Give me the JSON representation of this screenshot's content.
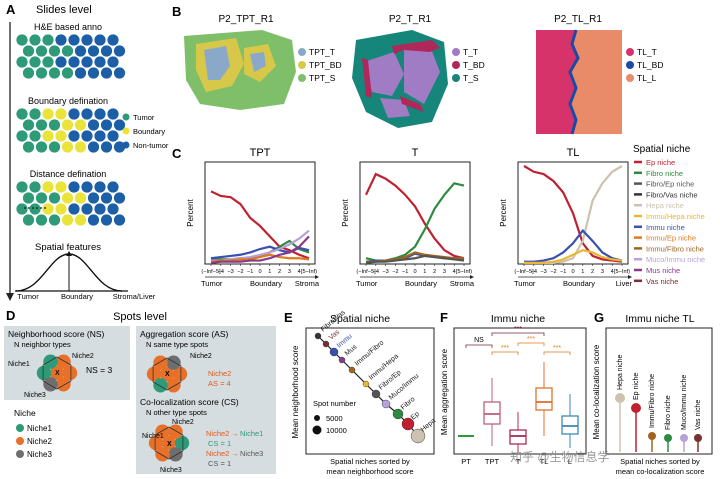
{
  "panel_letters": {
    "A": "A",
    "B": "B",
    "C": "C",
    "D": "D",
    "E": "E",
    "F": "F",
    "G": "G"
  },
  "A": {
    "title": "Slides level",
    "he_label": "H&E based anno",
    "boundary_label": "Boundary defination",
    "distance_label": "Distance defination",
    "features_label": "Spatial features",
    "legend": [
      {
        "label": "Tumor",
        "color": "#2e9a78"
      },
      {
        "label": "Boundary",
        "color": "#e9e33a"
      },
      {
        "label": "Non-tumor",
        "color": "#1d5fa6"
      }
    ],
    "axis_labels": [
      "Tumor",
      "Boundary",
      "Stroma/Liver"
    ]
  },
  "B": {
    "maps": [
      {
        "title": "P2_TPT_R1",
        "legend": [
          {
            "label": "TPT_T",
            "color": "#8aa9c8"
          },
          {
            "label": "TPT_BD",
            "color": "#d8c84a"
          },
          {
            "label": "TPT_S",
            "color": "#7fbf6a"
          }
        ]
      },
      {
        "title": "P2_T_R1",
        "legend": [
          {
            "label": "T_T",
            "color": "#a07cc5"
          },
          {
            "label": "T_BD",
            "color": "#b0285a"
          },
          {
            "label": "T_S",
            "color": "#16857a"
          }
        ]
      },
      {
        "title": "P2_TL_R1",
        "legend": [
          {
            "label": "TL_T",
            "color": "#d7336b"
          },
          {
            "label": "TL_BD",
            "color": "#1b4aa6"
          },
          {
            "label": "TL_L",
            "color": "#e98a68"
          }
        ]
      }
    ]
  },
  "C": {
    "legend_title": "Spatial niche",
    "ylabel": "Percent",
    "tick_labels": [
      "(−Inf−5]",
      "−4",
      "−3",
      "−2",
      "−1",
      "0",
      "1",
      "2",
      "3",
      "4",
      "[5−Inf)"
    ],
    "chart_data": {
      "type": "line",
      "x": [
        "(−Inf−5]",
        "−4",
        "−3",
        "−2",
        "−1",
        "0",
        "1",
        "2",
        "3",
        "4",
        "[5−Inf)"
      ],
      "series_colors": {
        "Ep niche": "#c0202f",
        "Fibro niche": "#2d8a3e",
        "Fibro/Ep niche": "#555555",
        "Fibro/Vas niche": "#333333",
        "Hepa niche": "#cdc2b0",
        "Immu/Hepa niche": "#e8b830",
        "Immu niche": "#3a4fb0",
        "Immu/Ep niche": "#e07a1e",
        "Immu/Fibro niche": "#a0651e",
        "Muco/Immu niche": "#b8a0d8",
        "Mus niche": "#8a3a8a",
        "Vas niche": "#7a3030"
      },
      "charts": [
        {
          "title": "TPT",
          "bottom_labels": [
            "Tumor",
            "Boundary",
            "Stroma"
          ],
          "series": [
            {
              "name": "Ep niche",
              "values": [
                0.63,
                0.59,
                0.58,
                0.52,
                0.4,
                0.33,
                0.24,
                0.15,
                0.12,
                0.08,
                0.05
              ]
            },
            {
              "name": "Fibro niche",
              "values": [
                0.04,
                0.04,
                0.04,
                0.05,
                0.05,
                0.07,
                0.1,
                0.15,
                0.2,
                0.13,
                0.1
              ]
            },
            {
              "name": "Immu niche",
              "values": [
                0.05,
                0.06,
                0.07,
                0.08,
                0.1,
                0.13,
                0.15,
                0.12,
                0.1,
                0.14,
                0.12
              ]
            },
            {
              "name": "Muco/Immu niche",
              "values": [
                0.03,
                0.03,
                0.04,
                0.05,
                0.06,
                0.08,
                0.1,
                0.13,
                0.17,
                0.22,
                0.29
              ]
            },
            {
              "name": "Immu/Ep niche",
              "values": [
                0.02,
                0.03,
                0.03,
                0.04,
                0.04,
                0.06,
                0.08,
                0.06,
                0.05,
                0.05,
                0.04
              ]
            },
            {
              "name": "Mus niche",
              "values": [
                0.01,
                0.02,
                0.02,
                0.02,
                0.03,
                0.03,
                0.05,
                0.08,
                0.1,
                0.15,
                0.24
              ]
            }
          ]
        },
        {
          "title": "T",
          "bottom_labels": [
            "Tumor",
            "Boundary",
            "Stroma"
          ],
          "series": [
            {
              "name": "Ep niche",
              "values": [
                0.6,
                0.78,
                0.74,
                0.68,
                0.6,
                0.5,
                0.35,
                0.22,
                0.12,
                0.07,
                0.05
              ]
            },
            {
              "name": "Fibro niche",
              "values": [
                0.05,
                0.03,
                0.03,
                0.05,
                0.08,
                0.15,
                0.3,
                0.48,
                0.6,
                0.7,
                0.68
              ]
            },
            {
              "name": "Immu niche",
              "values": [
                0.02,
                0.03,
                0.03,
                0.04,
                0.05,
                0.09,
                0.07,
                0.06,
                0.05,
                0.05,
                0.04
              ]
            },
            {
              "name": "Immu/Fibro niche",
              "values": [
                0.02,
                0.02,
                0.03,
                0.04,
                0.06,
                0.1,
                0.08,
                0.07,
                0.06,
                0.05,
                0.05
              ]
            },
            {
              "name": "Fibro/Ep niche",
              "values": [
                0.01,
                0.02,
                0.02,
                0.03,
                0.04,
                0.05,
                0.07,
                0.06,
                0.05,
                0.04,
                0.03
              ]
            }
          ]
        },
        {
          "title": "TL",
          "bottom_labels": [
            "Tumor",
            "Boundary",
            "Liver"
          ],
          "series": [
            {
              "name": "Ep niche",
              "values": [
                0.85,
                0.8,
                0.78,
                0.72,
                0.62,
                0.44,
                0.18,
                0.07,
                0.04,
                0.03,
                0.02
              ]
            },
            {
              "name": "Hepa niche",
              "values": [
                0.01,
                0.01,
                0.01,
                0.01,
                0.02,
                0.05,
                0.2,
                0.55,
                0.7,
                0.8,
                0.85
              ]
            },
            {
              "name": "Immu niche",
              "values": [
                0.02,
                0.02,
                0.03,
                0.05,
                0.1,
                0.18,
                0.29,
                0.2,
                0.1,
                0.05,
                0.03
              ]
            },
            {
              "name": "Immu/Hepa niche",
              "values": [
                0.01,
                0.01,
                0.01,
                0.02,
                0.04,
                0.08,
                0.12,
                0.1,
                0.06,
                0.04,
                0.03
              ]
            }
          ]
        }
      ]
    }
  },
  "D": {
    "title": "Spots level",
    "ns_title": "Neighborhood score (NS)",
    "ns_sub": "N neighbor types",
    "ns_value": "NS = 3",
    "as_title": "Aggregation score (AS)",
    "as_sub": "N same type spots",
    "as_value": "AS = 4",
    "cs_title": "Co-localization score (CS)",
    "cs_sub": "N other type spots",
    "cs_value1": "CS = 1",
    "cs_value2": "CS = 1",
    "niche_labels": {
      "niche1": "Niche1",
      "niche2": "Niche2",
      "niche3": "Niche3",
      "x": "X"
    },
    "legend_title": "Niche",
    "legend": [
      {
        "label": "Niche1",
        "color": "#2e9a78"
      },
      {
        "label": "Niche2",
        "color": "#e8712a"
      },
      {
        "label": "Niche3",
        "color": "#6e6e6e"
      }
    ]
  },
  "E": {
    "title": "Spatial niche",
    "ylabel": "Mean neighborhood score",
    "xlabel": [
      "Spatial niches sorted by",
      "mean neighborhood score"
    ],
    "size_legend_title": "Spot number",
    "size_legend": [
      "5000",
      "10000"
    ],
    "points": [
      {
        "label": "Fibro/Vas",
        "color": "#333333"
      },
      {
        "label": "Vas",
        "color": "#7a3030"
      },
      {
        "label": "Immu",
        "color": "#3a4fb0"
      },
      {
        "label": "Mus",
        "color": "#8a3a8a"
      },
      {
        "label": "Immu/Fibro",
        "color": "#a0651e"
      },
      {
        "label": "Immu/Hepa",
        "color": "#e8b830"
      },
      {
        "label": "Fibro/Ep",
        "color": "#555555"
      },
      {
        "label": "Muco/Immu",
        "color": "#b8a0d8"
      },
      {
        "label": "Fibro",
        "color": "#2d8a3e"
      },
      {
        "label": "Ep",
        "color": "#c0202f"
      },
      {
        "label": "Hepa",
        "color": "#cdc2b0"
      }
    ]
  },
  "F": {
    "title": "Immu niche",
    "ylabel": "Mean aggregation score",
    "categories": [
      "PT",
      "TPT",
      "T",
      "TL",
      "L"
    ],
    "colors": {
      "PT": "#2e9a3e",
      "TPT": "#c0607a",
      "T": "#b0285a",
      "TL": "#e0702a",
      "L": "#3a8ab8"
    },
    "sig": [
      "NS",
      "***",
      "***",
      "***",
      "***",
      "***"
    ]
  },
  "G": {
    "title": "Immu niche TL",
    "ylabel": "Mean co-localization score",
    "xlabel": [
      "Spatial niches sorted by",
      "mean co-localization score"
    ],
    "items": [
      {
        "label": "Hepa niche",
        "color": "#cdc2b0"
      },
      {
        "label": "Ep niche",
        "color": "#c0202f"
      },
      {
        "label": "Immu/Fibro niche",
        "color": "#a0651e"
      },
      {
        "label": "Fibro niche",
        "color": "#2d8a3e"
      },
      {
        "label": "Muco/Immu niche",
        "color": "#b8a0d8"
      },
      {
        "label": "Vas niche",
        "color": "#7a3030"
      }
    ]
  },
  "watermark": "知乎 @生物信息学"
}
